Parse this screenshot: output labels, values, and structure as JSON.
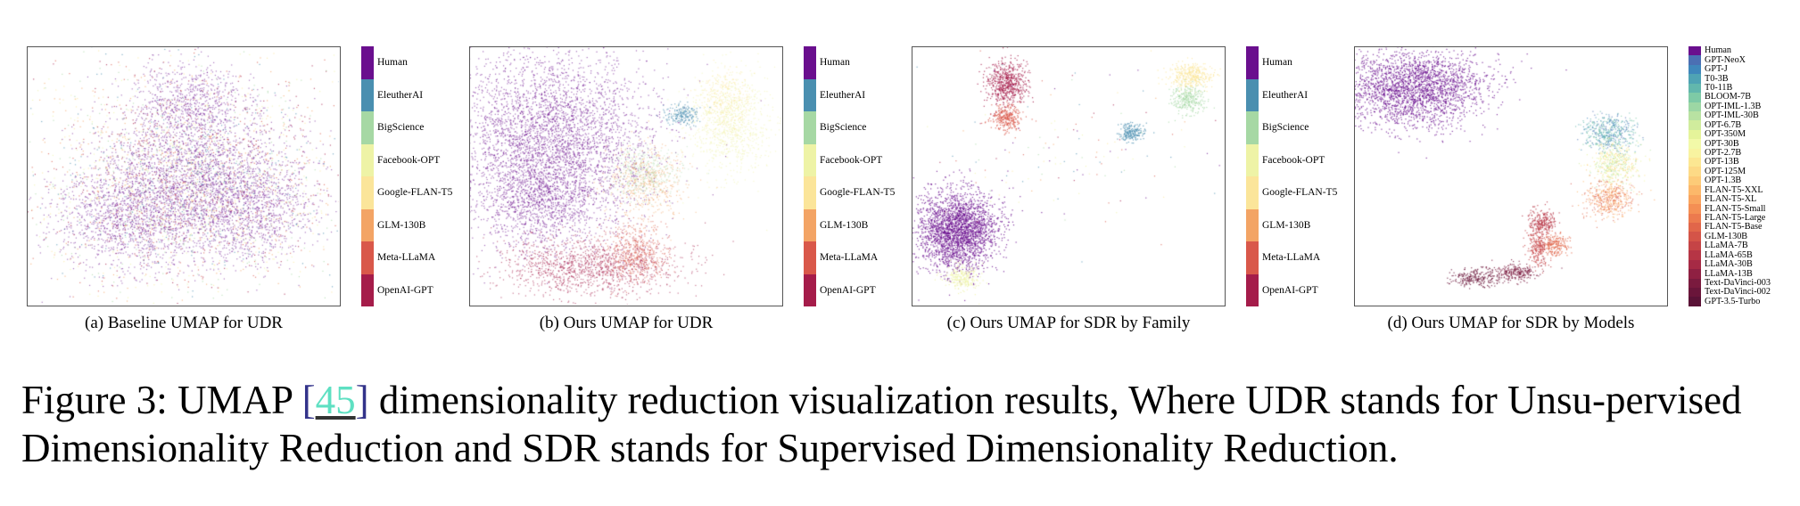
{
  "figure": {
    "panels": [
      {
        "id": "a",
        "subcaption": "(a) Baseline UMAP for UDR",
        "legend": [
          "Human",
          "EleutherAI",
          "BigScience",
          "Facebook-OPT",
          "Google-FLAN-T5",
          "GLM-130B",
          "Meta-LLaMA",
          "OpenAI-GPT"
        ]
      },
      {
        "id": "b",
        "subcaption": "(b) Ours UMAP for UDR",
        "legend": [
          "Human",
          "EleutherAI",
          "BigScience",
          "Facebook-OPT",
          "Google-FLAN-T5",
          "GLM-130B",
          "Meta-LLaMA",
          "OpenAI-GPT"
        ]
      },
      {
        "id": "c",
        "subcaption": "(c) Ours UMAP for SDR by Family",
        "legend": [
          "Human",
          "EleutherAI",
          "BigScience",
          "Facebook-OPT",
          "Google-FLAN-T5",
          "GLM-130B",
          "Meta-LLaMA",
          "OpenAI-GPT"
        ]
      },
      {
        "id": "d",
        "subcaption": "(d) Ours UMAP for SDR by Models",
        "legend": [
          "Human",
          "GPT-NeoX",
          "GPT-J",
          "T0-3B",
          "T0-11B",
          "BLOOM-7B",
          "OPT-IML-1.3B",
          "OPT-IML-30B",
          "OPT-6.7B",
          "OPT-350M",
          "OPT-30B",
          "OPT-2.7B",
          "OPT-13B",
          "OPT-125M",
          "OPT-1.3B",
          "FLAN-T5-XXL",
          "FLAN-T5-XL",
          "FLAN-T5-Small",
          "FLAN-T5-Large",
          "FLAN-T5-Base",
          "GLM-130B",
          "LLaMA-7B",
          "LLaMA-65B",
          "LLaMA-30B",
          "LLaMA-13B",
          "Text-DaVinci-003",
          "Text-DaVinci-002",
          "GPT-3.5-Turbo"
        ]
      }
    ],
    "caption": {
      "prefix": "Figure 3: UMAP ",
      "open_bracket": "[",
      "citation": "45",
      "close_bracket": "]",
      "suffix": " dimensionality reduction visualization results, Where UDR stands for Unsu-pervised Dimensionality Reduction and SDR stands for Supervised Dimensionality Reduction."
    }
  },
  "colors": {
    "family8": [
      "#6a0f8e",
      "#4a8fb0",
      "#a6d8a4",
      "#eef3a6",
      "#fbe59a",
      "#f3a465",
      "#d9584a",
      "#a51c4a"
    ],
    "models28": [
      "#6a0f8e",
      "#4b6fb3",
      "#3f87bb",
      "#4fa3b4",
      "#62b7ad",
      "#7ecaa6",
      "#9cd7a4",
      "#b8e2a2",
      "#d0ec9d",
      "#e5f49a",
      "#f2f9a8",
      "#f8f3a0",
      "#fce792",
      "#fdda86",
      "#fdcb78",
      "#fcb86a",
      "#f9a45e",
      "#f48f54",
      "#ec7a4e",
      "#e1664a",
      "#d45448",
      "#c54446",
      "#b63545",
      "#a62a45",
      "#8f2042",
      "#7a1a3e",
      "#6a153a",
      "#5a1236"
    ]
  },
  "chart_data": [
    {
      "panel": "a",
      "type": "scatter",
      "title": "",
      "xlabel": "",
      "ylabel": "",
      "grid": false,
      "legend_placement": "right colorbar",
      "series": [
        {
          "name": "Human"
        },
        {
          "name": "EleutherAI"
        },
        {
          "name": "BigScience"
        },
        {
          "name": "Facebook-OPT"
        },
        {
          "name": "Google-FLAN-T5"
        },
        {
          "name": "GLM-130B"
        },
        {
          "name": "Meta-LLaMA"
        },
        {
          "name": "OpenAI-GPT"
        }
      ]
    },
    {
      "panel": "b",
      "type": "scatter",
      "title": "",
      "xlabel": "",
      "ylabel": "",
      "grid": false,
      "legend_placement": "right colorbar",
      "series": [
        {
          "name": "Human"
        },
        {
          "name": "EleutherAI"
        },
        {
          "name": "BigScience"
        },
        {
          "name": "Facebook-OPT"
        },
        {
          "name": "Google-FLAN-T5"
        },
        {
          "name": "GLM-130B"
        },
        {
          "name": "Meta-LLaMA"
        },
        {
          "name": "OpenAI-GPT"
        }
      ]
    },
    {
      "panel": "c",
      "type": "scatter",
      "title": "",
      "xlabel": "",
      "ylabel": "",
      "grid": false,
      "legend_placement": "right colorbar",
      "series": [
        {
          "name": "Human"
        },
        {
          "name": "EleutherAI"
        },
        {
          "name": "BigScience"
        },
        {
          "name": "Facebook-OPT"
        },
        {
          "name": "Google-FLAN-T5"
        },
        {
          "name": "GLM-130B"
        },
        {
          "name": "Meta-LLaMA"
        },
        {
          "name": "OpenAI-GPT"
        }
      ]
    },
    {
      "panel": "d",
      "type": "scatter",
      "title": "",
      "xlabel": "",
      "ylabel": "",
      "grid": false,
      "legend_placement": "right colorbar",
      "series_count": 28
    }
  ]
}
